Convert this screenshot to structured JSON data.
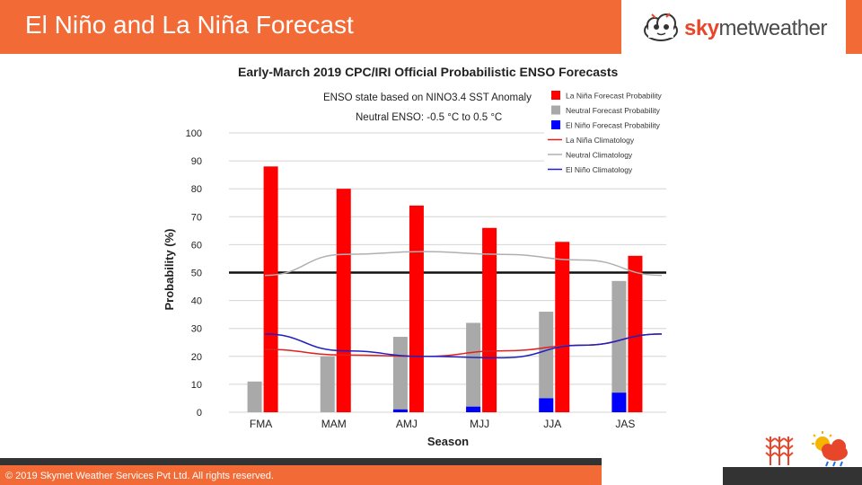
{
  "header": {
    "title": "El Niño and La Niña Forecast",
    "logo_prefix": "sky",
    "logo_suffix": "metweather"
  },
  "footer": {
    "copyright": "© 2019 Skymet Weather Services Pvt Ltd. All rights reserved."
  },
  "colors": {
    "brand_orange": "#f26a36",
    "la_nina": "#ff0000",
    "neutral": "#a9a9a9",
    "el_nino": "#0000ff"
  },
  "chart_data": {
    "type": "bar",
    "title": "Early-March 2019 CPC/IRI Official Probabilistic ENSO Forecasts",
    "subtitle_1": "ENSO state based on NINO3.4 SST Anomaly",
    "subtitle_2": "Neutral ENSO: -0.5 °C to 0.5 °C",
    "xlabel": "Season",
    "ylabel": "Probability (%)",
    "ylim": [
      0,
      100
    ],
    "yticks": [
      0,
      10,
      20,
      30,
      40,
      50,
      60,
      70,
      80,
      90,
      100
    ],
    "reference_line": 50,
    "categories": [
      "FMA",
      "MAM",
      "AMJ",
      "MJJ",
      "JJA",
      "JAS"
    ],
    "series": [
      {
        "name": "La Niña Forecast Probability",
        "kind": "bar",
        "color": "#ff0000",
        "values": [
          88,
          80,
          74,
          66,
          61,
          56
        ]
      },
      {
        "name": "Neutral Forecast Probability",
        "kind": "bar",
        "color": "#a9a9a9",
        "values": [
          11,
          20,
          27,
          32,
          36,
          47
        ]
      },
      {
        "name": "El Niño Forecast Probability",
        "kind": "bar",
        "color": "#0000ff",
        "values": [
          0,
          0,
          1,
          2,
          5,
          7
        ]
      }
    ],
    "climatology": [
      {
        "name": "La Niña Climatology",
        "color": "#e02020",
        "values": [
          22.5,
          20.5,
          20,
          22,
          24,
          28
        ]
      },
      {
        "name": "Neutral Climatology",
        "color": "#b0b0b0",
        "values": [
          49,
          56.5,
          57.5,
          56.5,
          54.5,
          49
        ]
      },
      {
        "name": "El Niño Climatology",
        "color": "#2020c0",
        "values": [
          28,
          22,
          20,
          19.5,
          24,
          28
        ]
      }
    ]
  }
}
